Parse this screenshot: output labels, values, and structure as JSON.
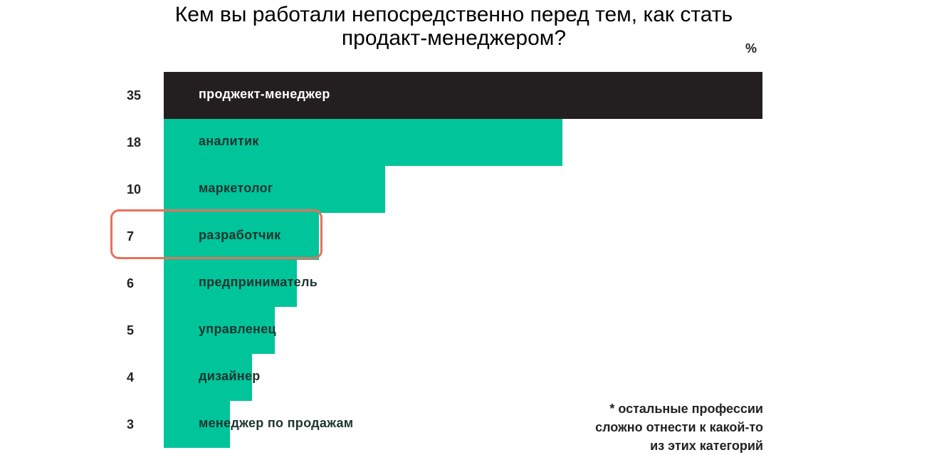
{
  "chart_data": {
    "type": "bar",
    "orientation": "horizontal",
    "title": "Кем вы работали непосредственно перед тем, как стать продакт-менеджером?",
    "title_lines": [
      "Кем вы работали непосредственно перед тем, как стать",
      "продакт-менеджером?"
    ],
    "unit": "%",
    "categories": [
      "проджект-менеджер",
      "аналитик",
      "маркетолог",
      "разработчик",
      "предприниматель",
      "управленец",
      "дизайнер",
      "менеджер по продажам"
    ],
    "values": [
      35,
      18,
      10,
      7,
      6,
      5,
      4,
      3
    ],
    "value_labels": [
      "35",
      "18",
      "10",
      "7",
      "6",
      "5",
      "4",
      "3"
    ],
    "highlighted_category": "разработчик",
    "footnote_lines": [
      "* остальные профессии",
      "сложно отнести к какой-то",
      "из этих категорий"
    ],
    "colors": {
      "first_bar": "#231f20",
      "bar": "#00c49a",
      "highlight": "#e8705a"
    },
    "grid": false,
    "legend": "none"
  }
}
